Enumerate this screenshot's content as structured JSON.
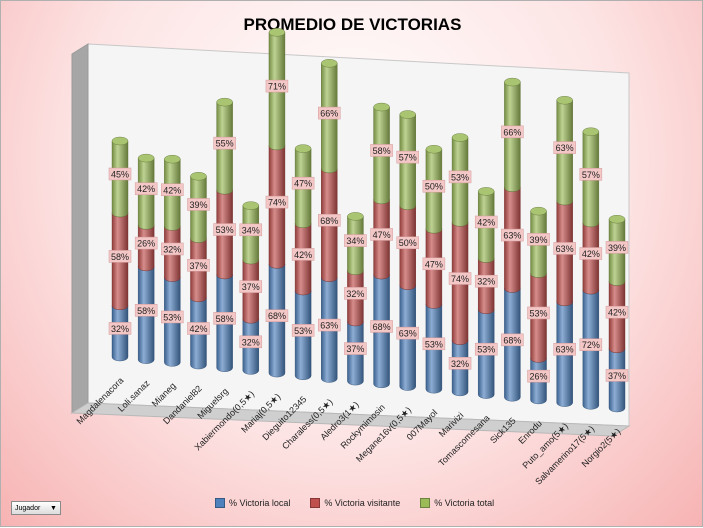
{
  "chart_data": {
    "type": "bar",
    "stacked": true,
    "three_d": true,
    "title": "PROMEDIO DE VICTORIAS",
    "categories": [
      "Magdalenacora",
      "Loli.sanaz",
      "Mianeg",
      "Dandaniel82",
      "Miguelsrg",
      "Xabiermondo(0,5★)",
      "Mariaj(0,5★)",
      "Dieguito12345",
      "Charaless(0,5★)",
      "Aledro3(1★)",
      "Rockymimosin",
      "Megane16v(0,5★)",
      "007Mayol",
      "Marivizi",
      "Tomascomesana",
      "Sick135",
      "Enrodu",
      "Puto_amo(5★)",
      "Salvamerino17(5★)",
      "Norgio2(5★)"
    ],
    "series": [
      {
        "name": "% Victoria local",
        "color": "#4f81bd",
        "values": [
          32,
          58,
          53,
          42,
          58,
          32,
          68,
          53,
          63,
          37,
          68,
          63,
          53,
          32,
          53,
          68,
          26,
          63,
          72,
          37
        ]
      },
      {
        "name": "% Victoria visitante",
        "color": "#c0504d",
        "values": [
          58,
          26,
          32,
          37,
          53,
          37,
          74,
          42,
          68,
          32,
          47,
          50,
          47,
          74,
          32,
          63,
          53,
          63,
          42,
          42
        ]
      },
      {
        "name": "% Victoria total",
        "color": "#9bbb59",
        "values": [
          45,
          42,
          42,
          39,
          55,
          34,
          71,
          47,
          66,
          34,
          58,
          57,
          50,
          53,
          42,
          66,
          39,
          63,
          57,
          39
        ]
      }
    ],
    "value_suffix": "%",
    "legend_position": "bottom",
    "grid": false
  },
  "filter_button": {
    "label": "Jugador"
  }
}
